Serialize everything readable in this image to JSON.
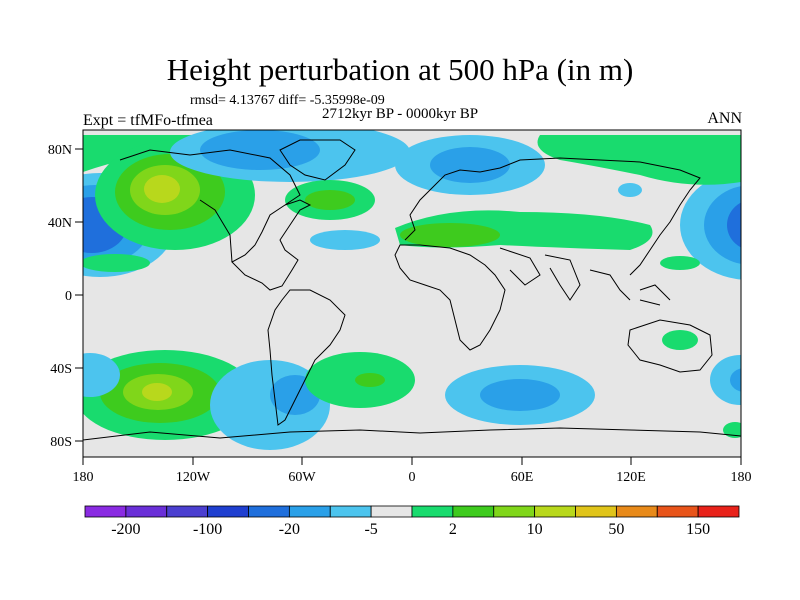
{
  "title": "Height perturbation at 500 hPa (in m)",
  "stats": "rmsd= 4.13767 diff= -5.35998e-09",
  "period": "2712kyr BP - 0000kyr BP",
  "experiment": "Expt = tfMFo-tfmea",
  "season": "ANN",
  "colors": {
    "land_ocean_neutral": "#e6e6e6",
    "coastline": "#000000",
    "levels_negative": [
      "#8a2be2",
      "#6a2fd8",
      "#4b3fd0",
      "#1f3fd0",
      "#1f6fdc",
      "#2aa0e8",
      "#4cc4ee"
    ],
    "levels_positive": [
      "#19db6e",
      "#3ecb1e",
      "#80d61a",
      "#b8d81c",
      "#e0c41a",
      "#e88a1a",
      "#e8541a",
      "#e8221a"
    ]
  },
  "map": {
    "projection": "cylindrical-equidistant",
    "lon_range": [
      -180,
      180
    ],
    "lat_range": [
      -90,
      90
    ],
    "x_tick_labels": [
      "180",
      "120W",
      "60W",
      "0",
      "60E",
      "120E",
      "180"
    ],
    "y_tick_labels": [
      "80N",
      "40N",
      "0",
      "40S",
      "80S"
    ],
    "features": [
      {
        "lon": -160,
        "lat": 40,
        "value": -30
      },
      {
        "lon": -150,
        "lat": 60,
        "value": 40
      },
      {
        "lon": -130,
        "lat": 50,
        "value": 20
      },
      {
        "lon": -125,
        "lat": -50,
        "value": 30
      },
      {
        "lon": -70,
        "lat": -50,
        "value": -10
      },
      {
        "lon": -40,
        "lat": 50,
        "value": 5
      },
      {
        "lon": -10,
        "lat": -45,
        "value": 5
      },
      {
        "lon": 60,
        "lat": -50,
        "value": -10
      },
      {
        "lon": 60,
        "lat": 70,
        "value": -15
      },
      {
        "lon": 40,
        "lat": 35,
        "value": 8
      },
      {
        "lon": 170,
        "lat": 40,
        "value": -30
      },
      {
        "lon": 170,
        "lat": -40,
        "value": -10
      }
    ]
  },
  "colorbar": {
    "labels": [
      "-200",
      "-100",
      "-20",
      "-5",
      "2",
      "10",
      "50",
      "150"
    ],
    "bins": [
      "#8a2be2",
      "#6a2fd8",
      "#4b3fd0",
      "#1f3fd0",
      "#1f6fdc",
      "#2aa0e8",
      "#4cc4ee",
      "#e6e6e6",
      "#19db6e",
      "#3ecb1e",
      "#80d61a",
      "#b8d81c",
      "#e0c41a",
      "#e88a1a",
      "#e8541a",
      "#e8221a"
    ]
  }
}
